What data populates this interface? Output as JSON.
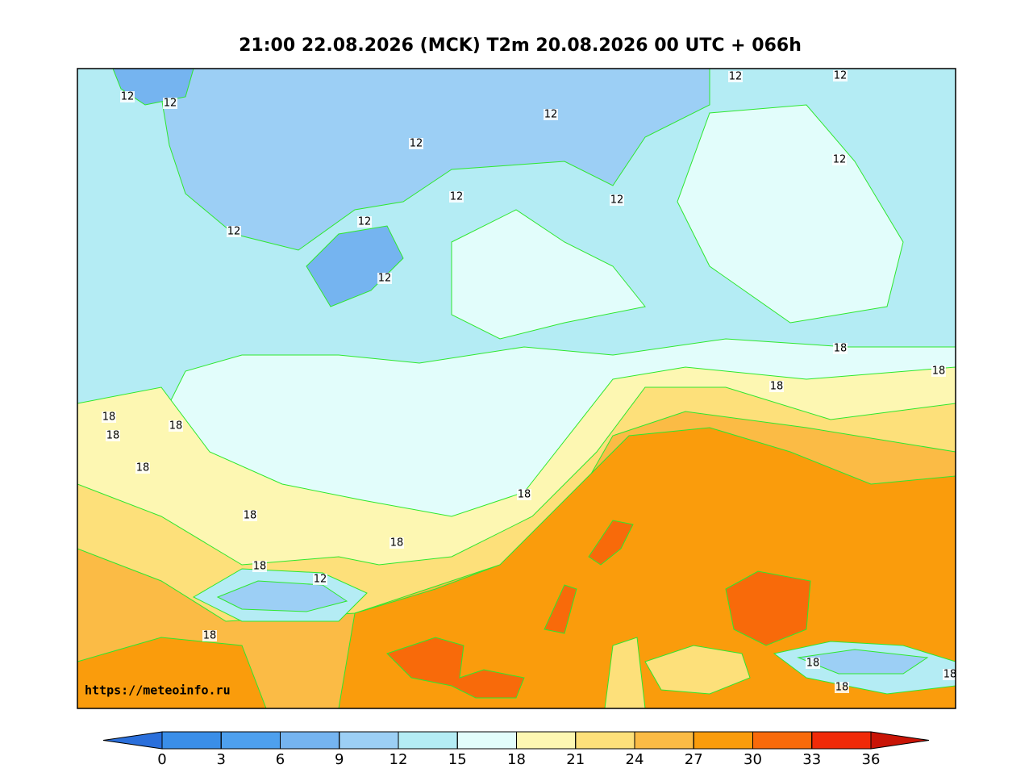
{
  "title": "21:00 22.08.2026 (MCK) T2m 20.08.2026 00 UTC + 066h",
  "url": "https://meteoinfo.ru",
  "contour_labels": [
    12,
    12,
    12,
    12,
    12,
    12,
    12,
    12,
    12,
    12,
    12,
    12,
    12,
    18,
    18,
    18,
    18,
    18,
    18,
    18,
    18,
    18,
    18,
    18,
    18,
    18,
    18,
    18
  ],
  "colorbar": {
    "ticks": [
      0,
      3,
      6,
      9,
      12,
      15,
      18,
      21,
      24,
      27,
      30,
      33,
      36
    ],
    "colors": [
      "#2a6fdb",
      "#3a8ee8",
      "#4ea0ee",
      "#75b4f0",
      "#9ccff5",
      "#b4ecf4",
      "#e2fdfb",
      "#fdf7b2",
      "#fde07a",
      "#fbbb45",
      "#fa9c0c",
      "#f86a0a",
      "#f02a08",
      "#c91406"
    ]
  }
}
